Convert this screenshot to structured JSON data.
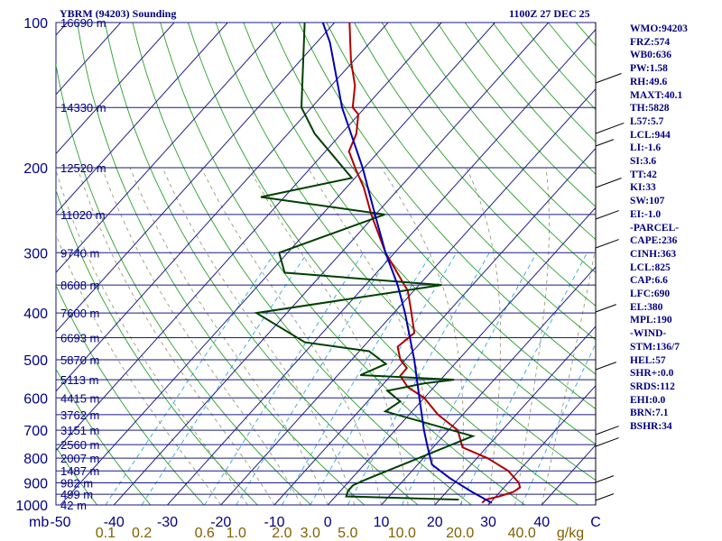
{
  "header": {
    "station": "YBRM (94203) Sounding",
    "time": "1100Z 27 DEC 25"
  },
  "indices": [
    "WMO:94203",
    "FRZ:574",
    "WB0:636",
    "PW:1.58",
    "RH:49.6",
    "MAXT:40.1",
    "TH:5828",
    "L57:5.7",
    "LCL:944",
    "LI:-1.6",
    "SI:3.6",
    "TT:42",
    "KI:33",
    "SW:107",
    "EI:-1.0",
    "-PARCEL-",
    "CAPE:236",
    "CINH:363",
    "LCL:825",
    "CAP:6.6",
    "LFC:690",
    "EL:380",
    "MPL:190",
    "-WIND-",
    "STM:136/7",
    "HEL:57",
    "SHR+:0.0",
    "SRDS:112",
    "EHI:0.0",
    "BRN:7.1",
    "BSHR:34"
  ],
  "colors": {
    "isobar": "#1a1a80",
    "isotherm": "#20208a",
    "dry_adiabat": "#2aa02a",
    "moist_adiabat": "#9a9a78",
    "mixing_ratio": "#30a8d8",
    "temperature": "#b00000",
    "dewpoint": "#004000",
    "parcel": "#0000b0",
    "wind": "#000000",
    "axis_text": "#000080",
    "mixing_text": "#806000"
  },
  "chart_data": {
    "type": "skew-t",
    "ylabel": "mb",
    "xlabel": "C",
    "mixing_unit": "g/kg",
    "pressure_levels": [
      100,
      200,
      300,
      400,
      500,
      600,
      700,
      800,
      900,
      1000
    ],
    "temperature_ticks": [
      -50,
      -40,
      -30,
      -20,
      -10,
      0,
      10,
      20,
      30,
      40
    ],
    "mixing_ratio_labels": [
      "0.1",
      "0.2",
      "0.6",
      "1.0",
      "2.0",
      "3.0",
      "5.0",
      "10.0",
      "20.0",
      "40.0"
    ],
    "mixing_ratio_values": [
      0.1,
      0.2,
      0.6,
      1.0,
      2.0,
      3.0,
      5.0,
      10.0,
      20.0,
      40.0
    ],
    "height_labels": [
      {
        "p": 100,
        "label": "16690 m"
      },
      {
        "p": 150,
        "label": "14330 m"
      },
      {
        "p": 200,
        "label": "12520 m"
      },
      {
        "p": 250,
        "label": "11020 m"
      },
      {
        "p": 300,
        "label": "9740 m"
      },
      {
        "p": 350,
        "label": "8608 m"
      },
      {
        "p": 400,
        "label": "7600 m"
      },
      {
        "p": 450,
        "label": "6693 m"
      },
      {
        "p": 500,
        "label": "5870 m"
      },
      {
        "p": 550,
        "label": "5113 m"
      },
      {
        "p": 600,
        "label": "4415 m"
      },
      {
        "p": 650,
        "label": "3762 m"
      },
      {
        "p": 700,
        "label": "3151 m"
      },
      {
        "p": 750,
        "label": "2560 m"
      },
      {
        "p": 800,
        "label": "2007 m"
      },
      {
        "p": 850,
        "label": "1487 m"
      },
      {
        "p": 900,
        "label": "982 m"
      },
      {
        "p": 950,
        "label": "499 m"
      },
      {
        "p": 1000,
        "label": "42 m"
      }
    ],
    "temperature_profile": [
      {
        "p": 990,
        "t": 28.5
      },
      {
        "p": 975,
        "t": 28.6
      },
      {
        "p": 960,
        "t": 30.6
      },
      {
        "p": 940,
        "t": 32.5
      },
      {
        "p": 920,
        "t": 33.0
      },
      {
        "p": 900,
        "t": 32.0
      },
      {
        "p": 850,
        "t": 28.0
      },
      {
        "p": 800,
        "t": 22.0
      },
      {
        "p": 760,
        "t": 15.5
      },
      {
        "p": 700,
        "t": 11.7
      },
      {
        "p": 650,
        "t": 5.4
      },
      {
        "p": 600,
        "t": 0.0
      },
      {
        "p": 570,
        "t": -4.9
      },
      {
        "p": 540,
        "t": -8.2
      },
      {
        "p": 520,
        "t": -8.3
      },
      {
        "p": 500,
        "t": -10.9
      },
      {
        "p": 470,
        "t": -13.6
      },
      {
        "p": 440,
        "t": -12.8
      },
      {
        "p": 400,
        "t": -16.7
      },
      {
        "p": 360,
        "t": -21.1
      },
      {
        "p": 300,
        "t": -31.7
      },
      {
        "p": 250,
        "t": -40.8
      },
      {
        "p": 220,
        "t": -46.7
      },
      {
        "p": 200,
        "t": -51.7
      },
      {
        "p": 185,
        "t": -55.6
      },
      {
        "p": 170,
        "t": -57.2
      },
      {
        "p": 155,
        "t": -60.1
      },
      {
        "p": 150,
        "t": -62.3
      },
      {
        "p": 135,
        "t": -65.6
      },
      {
        "p": 120,
        "t": -70.5
      },
      {
        "p": 110,
        "t": -73.7
      },
      {
        "p": 100,
        "t": -77.2
      }
    ],
    "dewpoint_profile": [
      {
        "p": 975,
        "d": 23.6
      },
      {
        "p": 960,
        "d": 2.0
      },
      {
        "p": 935,
        "d": 1.4
      },
      {
        "p": 910,
        "d": 1.4
      },
      {
        "p": 885,
        "d": 2.9
      },
      {
        "p": 720,
        "d": 15.5
      },
      {
        "p": 640,
        "d": -5.0
      },
      {
        "p": 610,
        "d": -3.9
      },
      {
        "p": 580,
        "d": -8.1
      },
      {
        "p": 560,
        "d": -2.5
      },
      {
        "p": 550,
        "d": 2.5
      },
      {
        "p": 538,
        "d": -15.8
      },
      {
        "p": 510,
        "d": -12.9
      },
      {
        "p": 480,
        "d": -18.2
      },
      {
        "p": 460,
        "d": -31.7
      },
      {
        "p": 400,
        "d": -45.7
      },
      {
        "p": 350,
        "d": -15.8
      },
      {
        "p": 330,
        "d": -47.2
      },
      {
        "p": 300,
        "d": -51.6
      },
      {
        "p": 250,
        "d": -38.3
      },
      {
        "p": 230,
        "d": -64.4
      },
      {
        "p": 210,
        "d": -50.6
      },
      {
        "p": 170,
        "d": -65.0
      },
      {
        "p": 150,
        "d": -71.9
      },
      {
        "p": 100,
        "d": -85.6
      }
    ],
    "parcel_profile": [
      {
        "p": 990,
        "t": 30.3
      },
      {
        "p": 940,
        "t": 24.8
      },
      {
        "p": 880,
        "t": 18.3
      },
      {
        "p": 825,
        "t": 12.7
      },
      {
        "p": 800,
        "t": 11.3
      },
      {
        "p": 750,
        "t": 8.4
      },
      {
        "p": 700,
        "t": 5.4
      },
      {
        "p": 600,
        "t": -0.9
      },
      {
        "p": 500,
        "t": -8.3
      },
      {
        "p": 400,
        "t": -17.9
      },
      {
        "p": 350,
        "t": -24.0
      },
      {
        "p": 300,
        "t": -31.7
      },
      {
        "p": 250,
        "t": -40.1
      },
      {
        "p": 200,
        "t": -50.3
      },
      {
        "p": 150,
        "t": -64.3
      },
      {
        "p": 110,
        "t": -77.5
      },
      {
        "p": 100,
        "t": -82.2
      }
    ],
    "wind_profile_y": [
      92,
      148,
      162,
      208,
      243,
      275,
      346,
      410,
      482,
      495,
      535,
      555
    ],
    "wind_profile_len": [
      1.0,
      1.1,
      0.7,
      1.0,
      0.9,
      0.9,
      0.8,
      0.8,
      0.9,
      0.9,
      0.7,
      0.7
    ]
  }
}
